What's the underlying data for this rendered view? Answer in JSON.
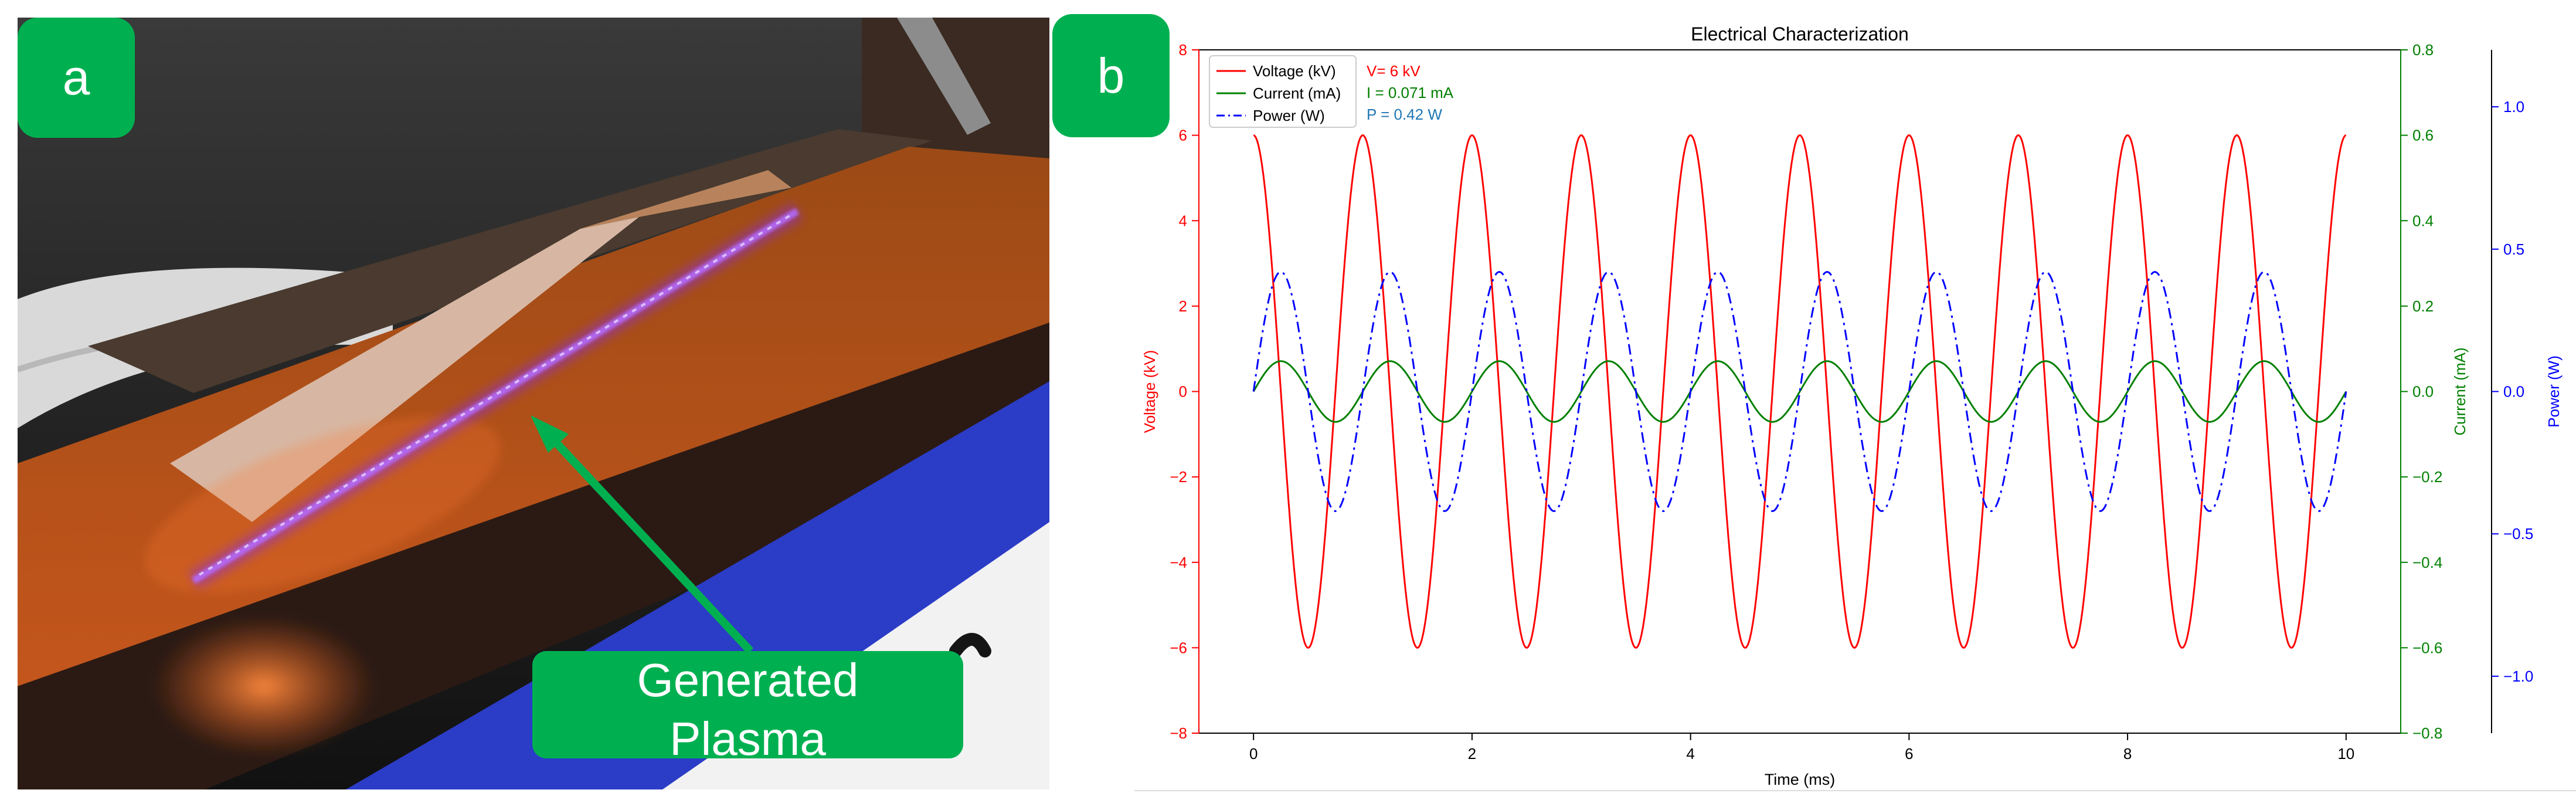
{
  "panel_a": {
    "badge": "a",
    "plasma_label_line1": "Generated",
    "plasma_label_line2": "Plasma"
  },
  "panel_b": {
    "badge": "b"
  },
  "colors": {
    "badge": "#00b050",
    "voltage": "#ff0000",
    "current": "#008000",
    "power": "#0000ff",
    "power_annotation": "#1f77b4"
  },
  "chart_data": {
    "type": "line",
    "title": "Electrical Characterization",
    "xlabel": "Time (ms)",
    "xlim": [
      -0.5,
      10.5
    ],
    "xticks": [
      0,
      2,
      4,
      6,
      8,
      10
    ],
    "grid": false,
    "legend_position": "top-left",
    "axes": {
      "voltage": {
        "label": "Voltage (kV)",
        "lim": [
          -8,
          8
        ],
        "ticks": [
          -8,
          -6,
          -4,
          -2,
          0,
          2,
          4,
          6,
          8
        ],
        "tick_labels": [
          "−8",
          "−6",
          "−4",
          "−2",
          "0",
          "2",
          "4",
          "6",
          "8"
        ]
      },
      "current": {
        "label": "Current (mA)",
        "lim": [
          -0.8,
          0.8
        ],
        "ticks": [
          -0.8,
          -0.6,
          -0.4,
          -0.2,
          0.0,
          0.2,
          0.4,
          0.6,
          0.8
        ],
        "tick_labels": [
          "−0.8",
          "−0.6",
          "−0.4",
          "−0.2",
          "0.0",
          "0.2",
          "0.4",
          "0.6",
          "0.8"
        ]
      },
      "power": {
        "label": "Power (W)",
        "lim": [
          -1.2,
          1.2
        ],
        "ticks": [
          -1.0,
          -0.5,
          0.0,
          0.5,
          1.0
        ],
        "tick_labels": [
          "−1.0",
          "−0.5",
          "0.0",
          "0.5",
          "1.0"
        ]
      }
    },
    "series": [
      {
        "name": "Voltage (kV)",
        "axis": "voltage",
        "function": "cosine",
        "amplitude": 6,
        "frequency_khz": 1,
        "x_range": [
          0,
          10
        ]
      },
      {
        "name": "Current (mA)",
        "axis": "current",
        "function": "sine",
        "amplitude": 0.071,
        "frequency_khz": 1,
        "x_range": [
          0,
          10
        ]
      },
      {
        "name": "Power (W)",
        "axis": "power",
        "function": "sine",
        "amplitude": 0.42,
        "frequency_khz": 1,
        "x_range": [
          0,
          10
        ]
      }
    ],
    "annotations": [
      "V= 6 kV",
      "I = 0.071 mA",
      "P = 0.42 W"
    ]
  }
}
